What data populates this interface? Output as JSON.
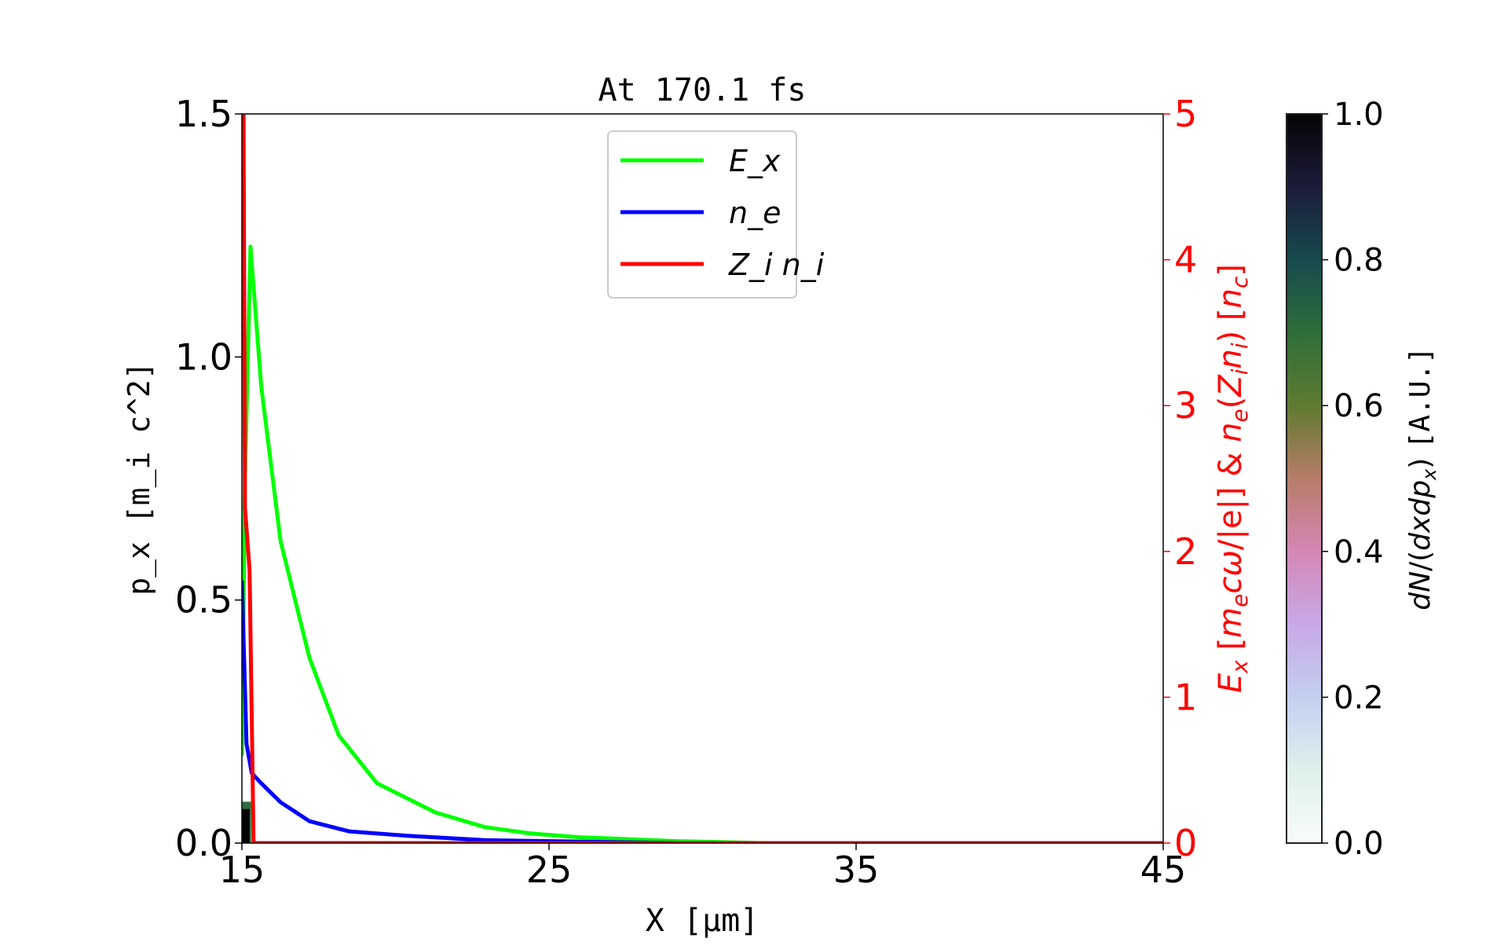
{
  "chart_data": {
    "type": "line",
    "title": "At 170.1 fs",
    "xlabel": "X [μm]",
    "ylabel_left": "p_x [m_i c^2]",
    "ylabel_right": "E_x [m_e c ω/|e|] & n_e(Z_i n_i) [n_c]",
    "colorbar_label": "dN/(dxdp_x) [A.U.]",
    "xlim": [
      15,
      45
    ],
    "ylim_left": [
      0,
      1.5
    ],
    "ylim_right": [
      0,
      5
    ],
    "colorbar_lim": [
      0,
      1
    ],
    "xticks": [
      "15",
      "25",
      "35",
      "45"
    ],
    "yticks_left": [
      "0.0",
      "0.5",
      "1.0",
      "1.5"
    ],
    "yticks_right": [
      "0",
      "1",
      "2",
      "3",
      "4",
      "5"
    ],
    "colorbar_ticks": [
      "0.0",
      "0.2",
      "0.4",
      "0.6",
      "0.8",
      "1.0"
    ],
    "legend_placement": "upper-center",
    "right_axis_color": "#ff0000",
    "series": [
      {
        "name": "E_x",
        "color": "#00ff00",
        "axis": "right",
        "x": [
          15.0,
          15.1,
          15.28,
          15.63,
          16.26,
          17.2,
          18.15,
          19.4,
          21.3,
          22.9,
          24.4,
          26,
          29.2,
          32,
          45
        ],
        "y": [
          0.6,
          2.5,
          4.09,
          3.13,
          2.07,
          1.27,
          0.74,
          0.41,
          0.21,
          0.11,
          0.066,
          0.04,
          0.013,
          0.0,
          0.0
        ]
      },
      {
        "name": "n_e",
        "color": "#0000ff",
        "axis": "right",
        "x": [
          15.0,
          15.15,
          15.32,
          15.63,
          16.26,
          17.2,
          18.5,
          20.4,
          22.9,
          26,
          29.2,
          45
        ],
        "y": [
          1.8,
          0.68,
          0.48,
          0.41,
          0.28,
          0.15,
          0.08,
          0.05,
          0.02,
          0.01,
          0.0,
          0.0
        ]
      },
      {
        "name": "Z_i n_i",
        "color": "#ff0000",
        "axis": "right",
        "x": [
          15.05,
          15.1,
          15.25,
          15.38,
          15.4,
          45
        ],
        "y": [
          5.2,
          2.3,
          1.87,
          0.0,
          0.0,
          0.0
        ]
      }
    ],
    "histogram": [
      {
        "x": [
          15.0,
          15.3
        ],
        "px": [
          0,
          0.085
        ],
        "level": 0.7
      },
      {
        "x": [
          15.0,
          15.25
        ],
        "px": [
          0,
          0.07
        ],
        "level": 1.0
      }
    ]
  }
}
